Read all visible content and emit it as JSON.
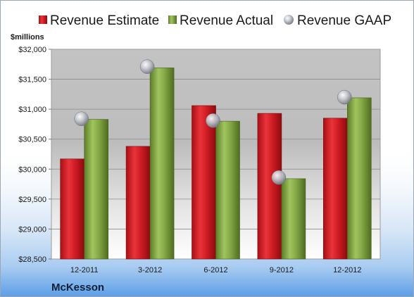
{
  "chart_data": {
    "type": "bar",
    "categories": [
      "12-2011",
      "3-2012",
      "6-2012",
      "9-2012",
      "12-2012"
    ],
    "series": [
      {
        "name": "Revenue Estimate",
        "kind": "bar",
        "color": "#d01e24",
        "values": [
          30170,
          30380,
          31060,
          30930,
          30850
        ]
      },
      {
        "name": "Revenue Actual",
        "kind": "bar",
        "color": "#7ea33e",
        "values": [
          30830,
          31690,
          30800,
          29840,
          31190
        ]
      },
      {
        "name": "Revenue GAAP",
        "kind": "marker",
        "color": "#b8bcc4",
        "values": [
          30840,
          31710,
          30810,
          29860,
          31200
        ]
      }
    ],
    "ylabel": "$millions",
    "ylim": [
      28500,
      32000
    ],
    "yticks": [
      28500,
      29000,
      29500,
      30000,
      30500,
      31000,
      31500,
      32000
    ],
    "ytick_labels": [
      "$28,500",
      "$29,000",
      "$29,500",
      "$30,000",
      "$30,500",
      "$31,000",
      "$31,500",
      "$32,000"
    ],
    "grid": true,
    "legend_position": "top"
  },
  "company": "McKesson"
}
